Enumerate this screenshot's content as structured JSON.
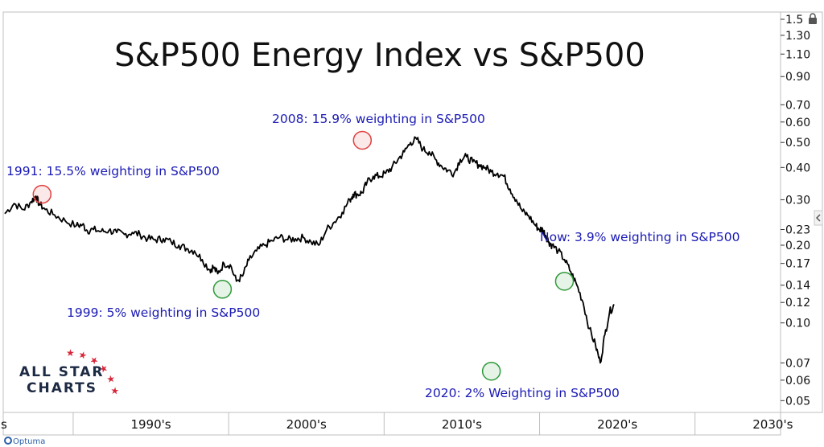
{
  "chart_data": {
    "type": "line",
    "title": "S&P500 Energy Index vs S&P500",
    "y_scale": "log",
    "ylim": [
      0.045,
      1.6
    ],
    "y_ticks": [
      "1.5",
      "1.30",
      "1.10",
      "0.90",
      "0.70",
      "0.60",
      "0.50",
      "0.40",
      "0.30",
      "0.23",
      "0.20",
      "0.17",
      "0.14",
      "0.12",
      "0.10",
      "0.07",
      "0.06",
      "0.05"
    ],
    "y_tick_values": [
      1.5,
      1.3,
      1.1,
      0.9,
      0.7,
      0.6,
      0.5,
      0.4,
      0.3,
      0.23,
      0.2,
      0.17,
      0.14,
      0.12,
      0.1,
      0.07,
      0.06,
      0.05
    ],
    "x_ticks": [
      "s",
      "1990's",
      "2000's",
      "2010's",
      "2020's",
      "2030's"
    ],
    "x_tick_years": [
      1985,
      1995,
      2005,
      2015,
      2025,
      2035
    ],
    "xlim": [
      1985.5,
      2035.5
    ],
    "series": [
      {
        "color": "#000000",
        "x": [
          1985.6,
          1986.2,
          1986.8,
          1987.3,
          1987.6,
          1987.8,
          1988.2,
          1988.8,
          1989.5,
          1990.2,
          1990.6,
          1990.9,
          1991.3,
          1991.8,
          1992.3,
          1992.8,
          1993.3,
          1993.8,
          1994.3,
          1994.8,
          1995.3,
          1995.8,
          1996.3,
          1996.8,
          1997.3,
          1997.8,
          1998.3,
          1998.8,
          1999.0,
          1999.3,
          1999.7,
          2000.1,
          2000.5,
          2000.9,
          2001.3,
          2001.8,
          2002.3,
          2002.8,
          2003.3,
          2003.8,
          2004.3,
          2004.8,
          2005.3,
          2005.8,
          2006.3,
          2006.8,
          2007.3,
          2007.8,
          2008.0,
          2008.3,
          2008.6,
          2008.9,
          2009.3,
          2009.7,
          2010.1,
          2010.5,
          2010.9,
          2011.3,
          2011.7,
          2012.1,
          2012.5,
          2012.9,
          2013.3,
          2013.7,
          2014.1,
          2014.5,
          2014.9,
          2015.3,
          2015.7,
          2016.1,
          2016.5,
          2016.9,
          2017.3,
          2017.7,
          2018.1,
          2018.5,
          2018.9,
          2019.3,
          2019.7,
          2020.0,
          2020.2,
          2020.4,
          2020.6,
          2020.8,
          2021.2,
          2021.6,
          2022.0,
          2022.4,
          2022.8,
          2023.2,
          2023.6,
          2023.9,
          2024.2,
          2024.5,
          2024.8
        ],
        "y": [
          0.265,
          0.29,
          0.275,
          0.295,
          0.31,
          0.29,
          0.275,
          0.262,
          0.248,
          0.238,
          0.24,
          0.228,
          0.23,
          0.226,
          0.228,
          0.224,
          0.22,
          0.224,
          0.22,
          0.212,
          0.21,
          0.212,
          0.206,
          0.2,
          0.194,
          0.19,
          0.176,
          0.16,
          0.165,
          0.155,
          0.17,
          0.168,
          0.145,
          0.152,
          0.175,
          0.19,
          0.2,
          0.208,
          0.215,
          0.21,
          0.212,
          0.214,
          0.206,
          0.2,
          0.23,
          0.246,
          0.268,
          0.3,
          0.315,
          0.315,
          0.32,
          0.35,
          0.37,
          0.37,
          0.38,
          0.4,
          0.43,
          0.46,
          0.5,
          0.515,
          0.47,
          0.46,
          0.43,
          0.405,
          0.39,
          0.38,
          0.43,
          0.44,
          0.42,
          0.41,
          0.4,
          0.385,
          0.38,
          0.37,
          0.33,
          0.3,
          0.27,
          0.26,
          0.24,
          0.23,
          0.23,
          0.218,
          0.206,
          0.2,
          0.19,
          0.176,
          0.158,
          0.14,
          0.12,
          0.095,
          0.082,
          0.07,
          0.09,
          0.11,
          0.118
        ]
      }
    ],
    "annotations": [
      {
        "text": "1991: 15.5% weighting in S&P500",
        "circle_x": 1988.0,
        "circle_y": 0.315,
        "circle_color": "#e04040"
      },
      {
        "text": "2008: 15.9% weighting in S&P500",
        "circle_x": 2008.6,
        "circle_y": 0.51,
        "circle_color": "#e04040"
      },
      {
        "text": "1999: 5% weighting in S&P500",
        "circle_x": 1999.6,
        "circle_y": 0.135,
        "circle_color": "#2e9a3a"
      },
      {
        "text": "2020: 2% Weighting in S&P500",
        "circle_x": 2016.9,
        "circle_y": 0.065,
        "circle_color": "#2e9a3a"
      },
      {
        "text": "Now: 3.9% weighting in S&P500",
        "circle_x": 2021.6,
        "circle_y": 0.145,
        "circle_color": "#2e9a3a"
      }
    ]
  },
  "logo": {
    "line1": "ALL STAR",
    "line2": "CHARTS"
  },
  "brand": {
    "name": "Optuma"
  },
  "colors": {
    "note_text": "#1a1ab5",
    "line": "#000000",
    "peak_circle": "#e04040",
    "trough_circle": "#2e9a3a"
  }
}
